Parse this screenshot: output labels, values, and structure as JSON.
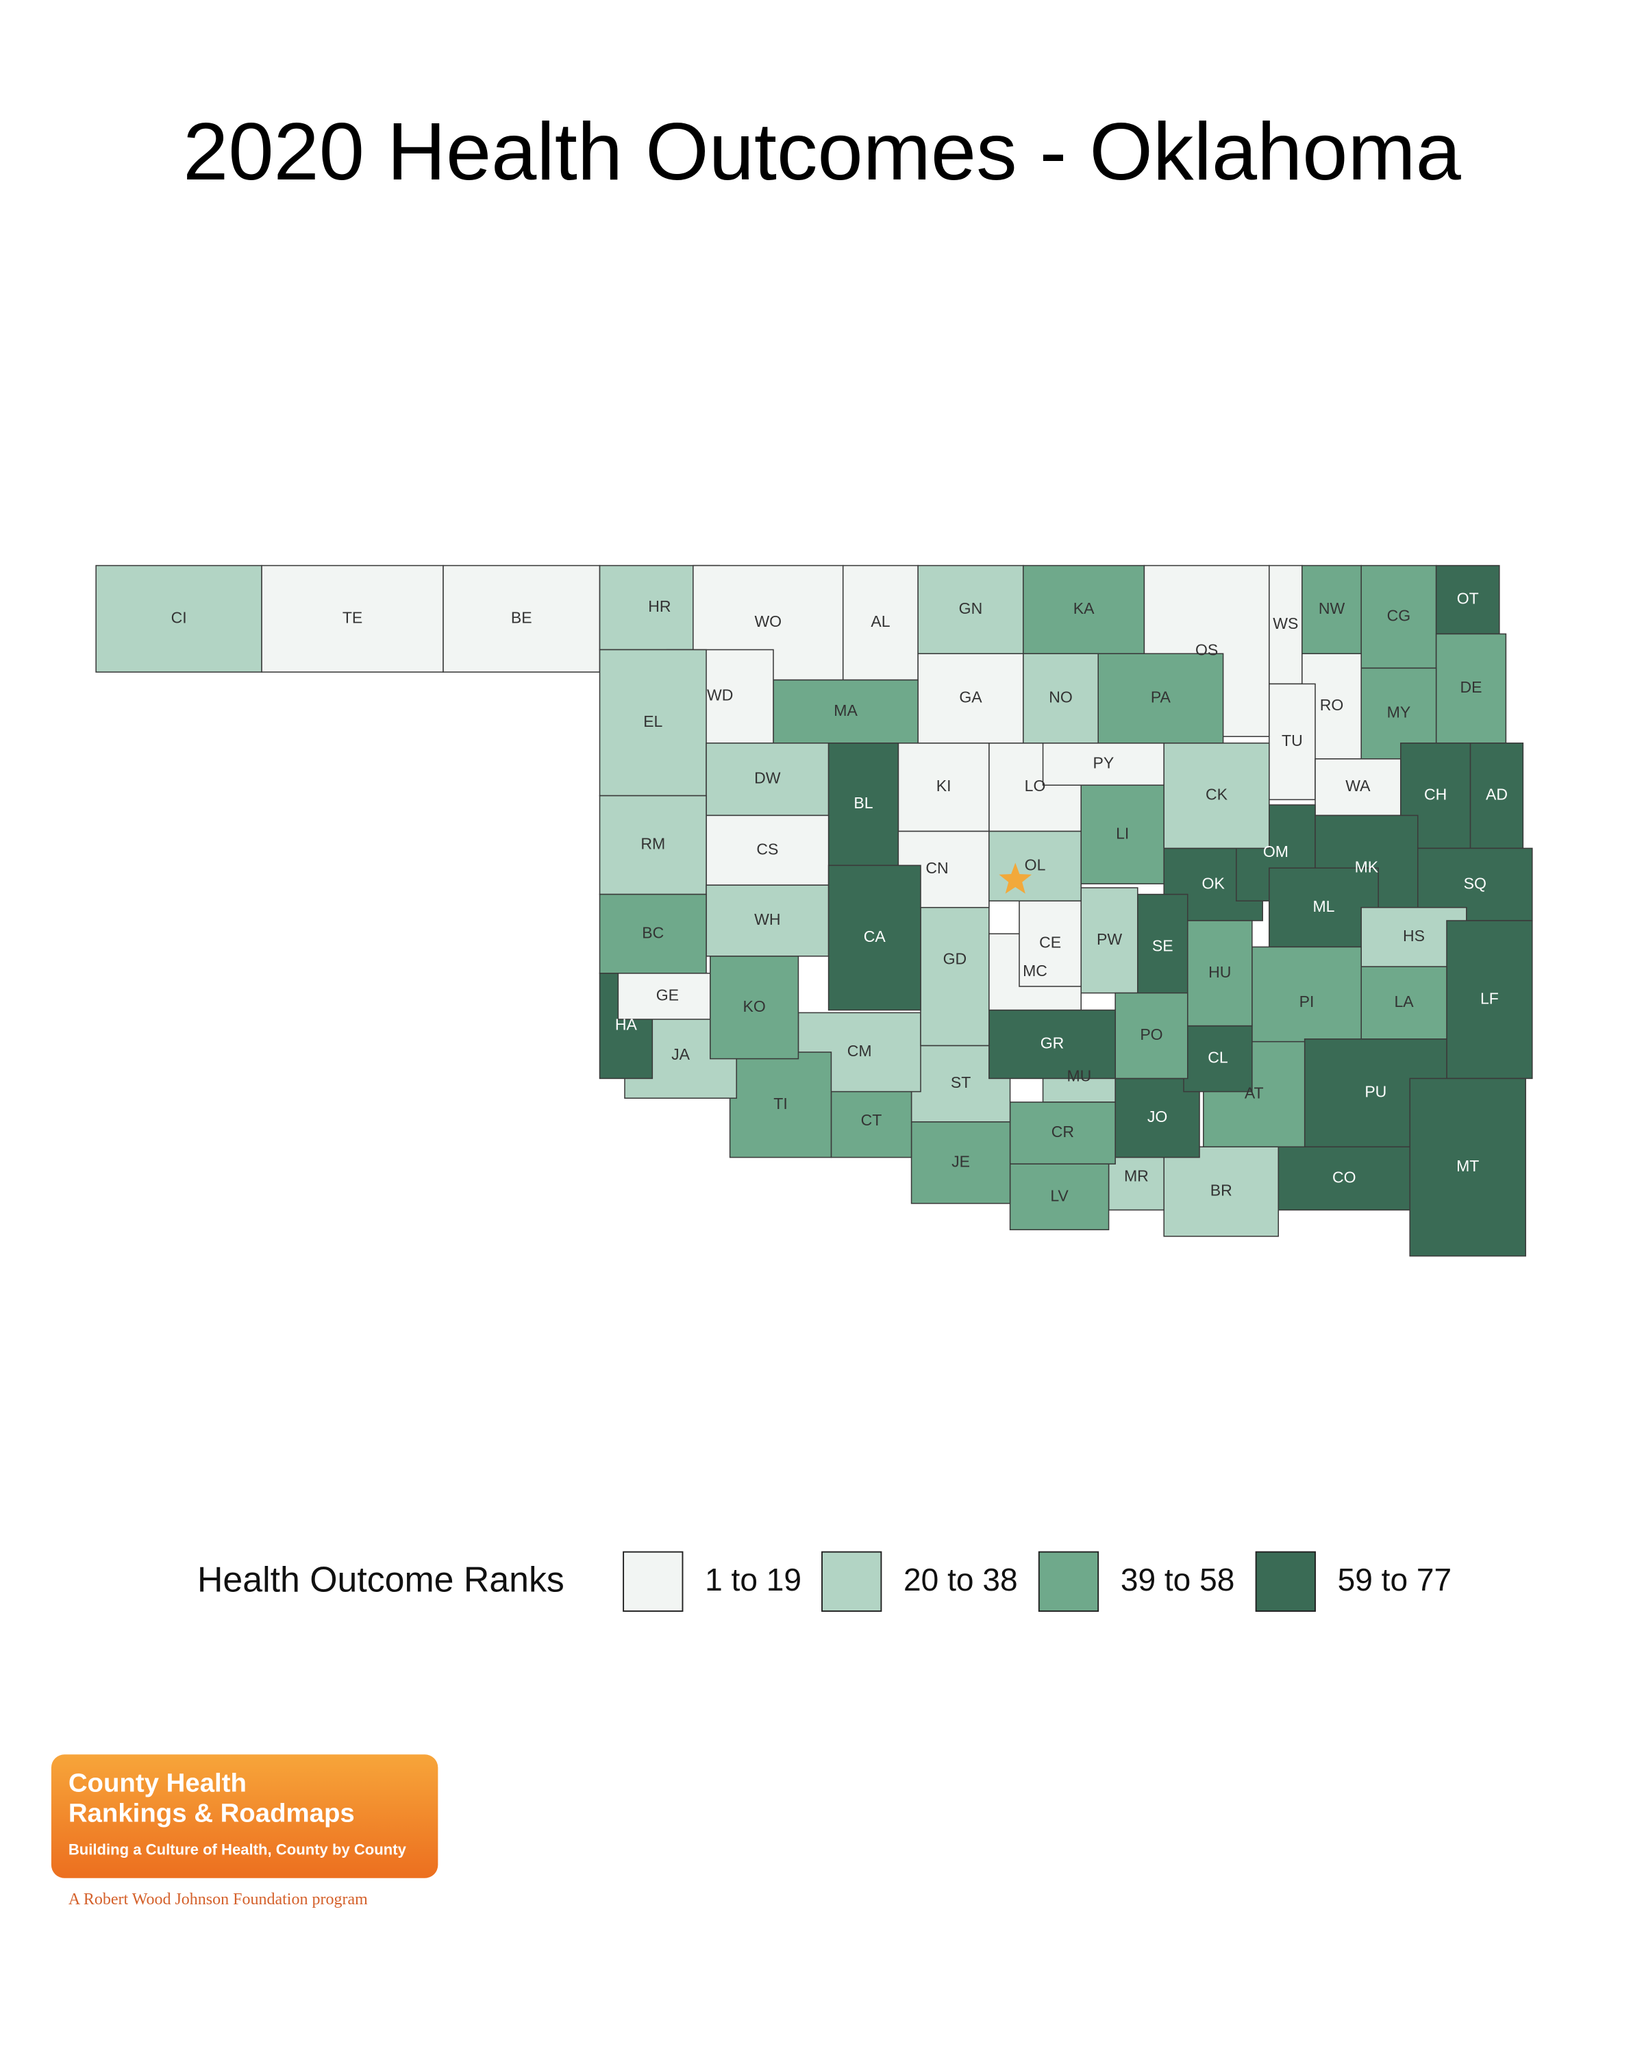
{
  "title": "2020 Health Outcomes - Oklahoma",
  "legend": {
    "title": "Health Outcome Ranks",
    "items": [
      {
        "label": "1 to 19",
        "color": "#f2f5f3"
      },
      {
        "label": "20 to 38",
        "color": "#b2d4c4"
      },
      {
        "label": "39 to 58",
        "color": "#6fa98b"
      },
      {
        "label": "59 to 77",
        "color": "#3a6b55"
      }
    ]
  },
  "counties": [
    {
      "label": "CI",
      "bin": 1
    },
    {
      "label": "TE",
      "bin": 0
    },
    {
      "label": "BE",
      "bin": 0
    },
    {
      "label": "HR",
      "bin": 1
    },
    {
      "label": "WO",
      "bin": 0
    },
    {
      "label": "AL",
      "bin": 0
    },
    {
      "label": "GN",
      "bin": 1
    },
    {
      "label": "KA",
      "bin": 2
    },
    {
      "label": "OS",
      "bin": 0
    },
    {
      "label": "WS",
      "bin": 0
    },
    {
      "label": "NW",
      "bin": 2
    },
    {
      "label": "CG",
      "bin": 2
    },
    {
      "label": "OT",
      "bin": 3
    },
    {
      "label": "DE",
      "bin": 2
    },
    {
      "label": "MY",
      "bin": 2
    },
    {
      "label": "RO",
      "bin": 0
    },
    {
      "label": "TU",
      "bin": 0
    },
    {
      "label": "WA",
      "bin": 0
    },
    {
      "label": "CH",
      "bin": 3
    },
    {
      "label": "AD",
      "bin": 3
    },
    {
      "label": "OK",
      "bin": 3
    },
    {
      "label": "OM",
      "bin": 3
    },
    {
      "label": "MK",
      "bin": 3
    },
    {
      "label": "SQ",
      "bin": 3
    },
    {
      "label": "ML",
      "bin": 3
    },
    {
      "label": "HS",
      "bin": 1
    },
    {
      "label": "LF",
      "bin": 3
    },
    {
      "label": "LA",
      "bin": 2
    },
    {
      "label": "PI",
      "bin": 2
    },
    {
      "label": "PU",
      "bin": 3
    },
    {
      "label": "MT",
      "bin": 3
    },
    {
      "label": "CO",
      "bin": 3
    },
    {
      "label": "AT",
      "bin": 2
    },
    {
      "label": "BR",
      "bin": 1
    },
    {
      "label": "MR",
      "bin": 1
    },
    {
      "label": "JO",
      "bin": 3
    },
    {
      "label": "CL",
      "bin": 3
    },
    {
      "label": "HU",
      "bin": 2
    },
    {
      "label": "SE",
      "bin": 3
    },
    {
      "label": "PW",
      "bin": 1
    },
    {
      "label": "PO",
      "bin": 2
    },
    {
      "label": "MU",
      "bin": 1
    },
    {
      "label": "CR",
      "bin": 2
    },
    {
      "label": "LV",
      "bin": 2
    },
    {
      "label": "JE",
      "bin": 2
    },
    {
      "label": "ST",
      "bin": 1
    },
    {
      "label": "CT",
      "bin": 2
    },
    {
      "label": "CM",
      "bin": 1
    },
    {
      "label": "TI",
      "bin": 2
    },
    {
      "label": "JA",
      "bin": 1
    },
    {
      "label": "HA",
      "bin": 3
    },
    {
      "label": "GE",
      "bin": 0
    },
    {
      "label": "KO",
      "bin": 2
    },
    {
      "label": "GR",
      "bin": 3
    },
    {
      "label": "GD",
      "bin": 1
    },
    {
      "label": "MC",
      "bin": 0
    },
    {
      "label": "CE",
      "bin": 0
    },
    {
      "label": "CN",
      "bin": 0
    },
    {
      "label": "OL",
      "bin": 1
    },
    {
      "label": "LO",
      "bin": 0
    },
    {
      "label": "KI",
      "bin": 0
    },
    {
      "label": "PY",
      "bin": 0
    },
    {
      "label": "LI",
      "bin": 2
    },
    {
      "label": "CK",
      "bin": 1
    },
    {
      "label": "PA",
      "bin": 2
    },
    {
      "label": "NO",
      "bin": 1
    },
    {
      "label": "GA",
      "bin": 0
    },
    {
      "label": "MA",
      "bin": 2
    },
    {
      "label": "WD",
      "bin": 0
    },
    {
      "label": "EL",
      "bin": 1
    },
    {
      "label": "DW",
      "bin": 1
    },
    {
      "label": "BL",
      "bin": 3
    },
    {
      "label": "CS",
      "bin": 0
    },
    {
      "label": "RM",
      "bin": 1
    },
    {
      "label": "WH",
      "bin": 1
    },
    {
      "label": "CA",
      "bin": 3
    },
    {
      "label": "BC",
      "bin": 2
    }
  ],
  "logo": {
    "line1": "County Health",
    "line2": "Rankings & Roadmaps",
    "tagline": "Building a Culture of Health, County by County",
    "footer": "A Robert Wood Johnson Foundation program"
  }
}
